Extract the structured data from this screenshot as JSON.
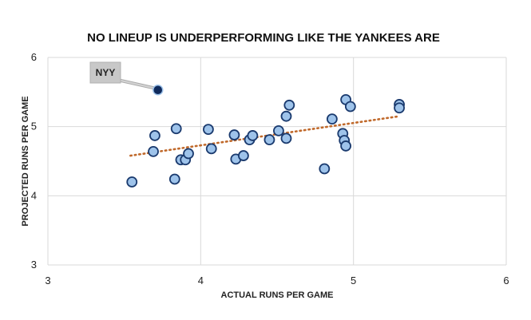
{
  "chart_data": {
    "type": "scatter",
    "title": "NO LINEUP IS UNDERPERFORMING LIKE THE YANKEES ARE",
    "xlabel": "ACTUAL RUNS PER GAME",
    "ylabel": "PROJECTED RUNS PER GAME",
    "xlim": [
      3,
      6
    ],
    "ylim": [
      3,
      6
    ],
    "xticks": [
      "3",
      "4",
      "5",
      "6"
    ],
    "yticks": [
      "3",
      "4",
      "5",
      "6"
    ],
    "grid": true,
    "point_color": "#9ec3ea",
    "point_edge_color": "#1a3a6e",
    "trendline_color": "#c0692b",
    "highlight_color": "#0f2a5c",
    "trendline": {
      "style": "dotted",
      "x": [
        3.54,
        5.3
      ],
      "y": [
        4.58,
        5.15
      ]
    },
    "points": [
      {
        "x": 3.55,
        "y": 4.2
      },
      {
        "x": 3.69,
        "y": 4.64
      },
      {
        "x": 3.7,
        "y": 4.87
      },
      {
        "x": 3.83,
        "y": 4.24
      },
      {
        "x": 3.84,
        "y": 4.97
      },
      {
        "x": 3.87,
        "y": 4.52
      },
      {
        "x": 3.9,
        "y": 4.52
      },
      {
        "x": 3.92,
        "y": 4.61
      },
      {
        "x": 4.05,
        "y": 4.96
      },
      {
        "x": 4.07,
        "y": 4.68
      },
      {
        "x": 4.22,
        "y": 4.88
      },
      {
        "x": 4.23,
        "y": 4.53
      },
      {
        "x": 4.28,
        "y": 4.58
      },
      {
        "x": 4.32,
        "y": 4.81
      },
      {
        "x": 4.34,
        "y": 4.87
      },
      {
        "x": 4.45,
        "y": 4.81
      },
      {
        "x": 4.51,
        "y": 4.94
      },
      {
        "x": 4.56,
        "y": 4.83
      },
      {
        "x": 4.56,
        "y": 5.15
      },
      {
        "x": 4.58,
        "y": 5.31
      },
      {
        "x": 4.81,
        "y": 4.39
      },
      {
        "x": 4.86,
        "y": 5.11
      },
      {
        "x": 4.93,
        "y": 4.9
      },
      {
        "x": 4.94,
        "y": 4.8
      },
      {
        "x": 4.95,
        "y": 4.72
      },
      {
        "x": 4.95,
        "y": 5.39
      },
      {
        "x": 4.98,
        "y": 5.29
      },
      {
        "x": 5.3,
        "y": 5.32
      },
      {
        "x": 5.3,
        "y": 5.27
      }
    ],
    "highlight": {
      "label": "NYY",
      "x": 3.72,
      "y": 5.53
    }
  }
}
